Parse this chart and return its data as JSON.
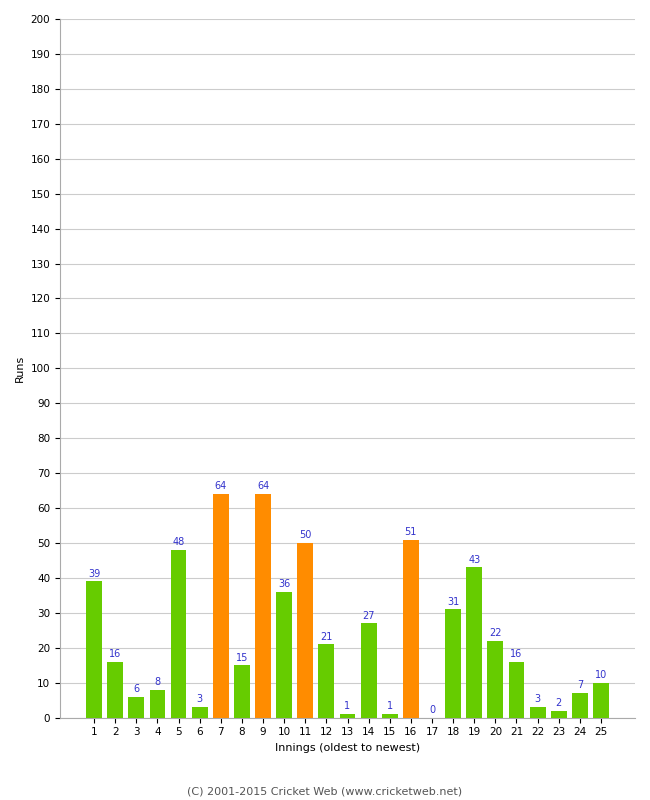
{
  "innings": [
    1,
    2,
    3,
    4,
    5,
    6,
    7,
    8,
    9,
    10,
    11,
    12,
    13,
    14,
    15,
    16,
    17,
    18,
    19,
    20,
    21,
    22,
    23,
    24,
    25
  ],
  "values": [
    39,
    16,
    6,
    8,
    48,
    3,
    64,
    15,
    64,
    36,
    50,
    21,
    1,
    27,
    1,
    51,
    0,
    31,
    43,
    22,
    16,
    3,
    2,
    7,
    10
  ],
  "colors": [
    "#66cc00",
    "#66cc00",
    "#66cc00",
    "#66cc00",
    "#66cc00",
    "#66cc00",
    "#ff8c00",
    "#66cc00",
    "#ff8c00",
    "#66cc00",
    "#ff8c00",
    "#66cc00",
    "#66cc00",
    "#66cc00",
    "#66cc00",
    "#ff8c00",
    "#66cc00",
    "#66cc00",
    "#66cc00",
    "#66cc00",
    "#66cc00",
    "#66cc00",
    "#66cc00",
    "#66cc00",
    "#66cc00"
  ],
  "label_color": "#3333cc",
  "ylabel": "Runs",
  "xlabel": "Innings (oldest to newest)",
  "ylim": [
    0,
    200
  ],
  "ytick_step": 10,
  "footer": "(C) 2001-2015 Cricket Web (www.cricketweb.net)",
  "background_color": "#ffffff",
  "grid_color": "#cccccc",
  "bar_width": 0.75,
  "figwidth": 6.5,
  "figheight": 8.0,
  "dpi": 100
}
